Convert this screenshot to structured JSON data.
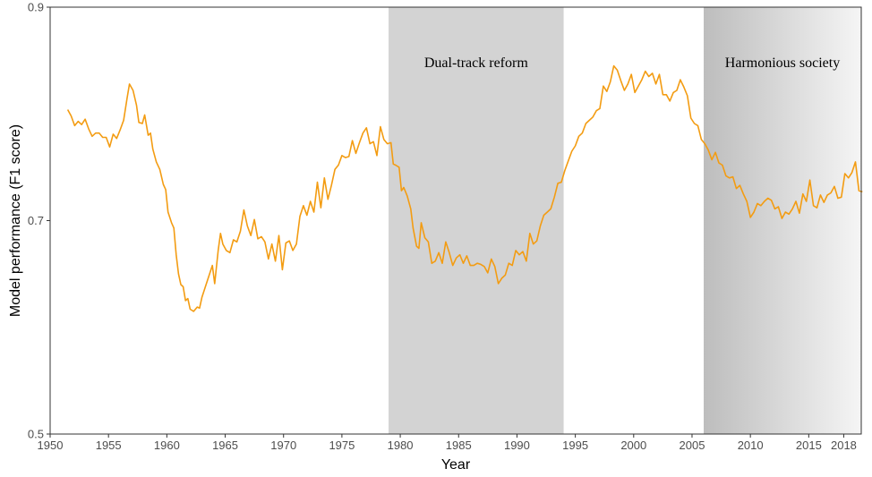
{
  "chart_data": {
    "type": "line",
    "title": "",
    "xlabel": "Year",
    "ylabel": "Model performance (F1 score)",
    "xlim": [
      1950,
      2019.5
    ],
    "ylim": [
      0.5,
      0.9
    ],
    "x_ticks": [
      1950,
      1955,
      1960,
      1965,
      1970,
      1975,
      1980,
      1985,
      1990,
      1995,
      2000,
      2005,
      2010,
      2015,
      2018
    ],
    "y_ticks": [
      0.5,
      0.7,
      0.9
    ],
    "y_tick_labels": [
      "0.5",
      "0.7",
      "0.9"
    ],
    "grid": false,
    "line_color": "#f39c12",
    "bands": [
      {
        "label": "Dual-track reform",
        "start": 1979,
        "end": 1994,
        "color": "#d3d3d3",
        "gradient": false
      },
      {
        "label": "Harmonious society",
        "start": 2006,
        "end": 2019.5,
        "color": "#bdbdbd",
        "end_color": "#f5f5f5",
        "gradient": true
      }
    ],
    "series": [
      {
        "values": [
          [
            1951.5,
            0.804
          ],
          [
            1951.8,
            0.798
          ],
          [
            1952.1,
            0.789
          ],
          [
            1952.4,
            0.793
          ],
          [
            1952.7,
            0.79
          ],
          [
            1953.0,
            0.795
          ],
          [
            1953.3,
            0.786
          ],
          [
            1953.6,
            0.779
          ],
          [
            1953.9,
            0.782
          ],
          [
            1954.2,
            0.782
          ],
          [
            1954.5,
            0.778
          ],
          [
            1954.8,
            0.778
          ],
          [
            1955.1,
            0.769
          ],
          [
            1955.4,
            0.781
          ],
          [
            1955.7,
            0.777
          ],
          [
            1956.0,
            0.785
          ],
          [
            1956.3,
            0.794
          ],
          [
            1956.6,
            0.815
          ],
          [
            1956.8,
            0.828
          ],
          [
            1957.1,
            0.822
          ],
          [
            1957.4,
            0.808
          ],
          [
            1957.6,
            0.792
          ],
          [
            1957.9,
            0.791
          ],
          [
            1958.1,
            0.799
          ],
          [
            1958.4,
            0.78
          ],
          [
            1958.6,
            0.782
          ],
          [
            1958.8,
            0.767
          ],
          [
            1959.1,
            0.755
          ],
          [
            1959.4,
            0.748
          ],
          [
            1959.7,
            0.734
          ],
          [
            1959.9,
            0.729
          ],
          [
            1960.1,
            0.708
          ],
          [
            1960.4,
            0.698
          ],
          [
            1960.6,
            0.693
          ],
          [
            1960.8,
            0.668
          ],
          [
            1961.0,
            0.65
          ],
          [
            1961.2,
            0.64
          ],
          [
            1961.4,
            0.638
          ],
          [
            1961.6,
            0.625
          ],
          [
            1961.8,
            0.627
          ],
          [
            1962.0,
            0.617
          ],
          [
            1962.3,
            0.615
          ],
          [
            1962.6,
            0.619
          ],
          [
            1962.8,
            0.618
          ],
          [
            1963.0,
            0.628
          ],
          [
            1963.3,
            0.638
          ],
          [
            1963.6,
            0.648
          ],
          [
            1963.9,
            0.658
          ],
          [
            1964.1,
            0.641
          ],
          [
            1964.4,
            0.672
          ],
          [
            1964.6,
            0.688
          ],
          [
            1964.8,
            0.678
          ],
          [
            1965.1,
            0.672
          ],
          [
            1965.4,
            0.67
          ],
          [
            1965.7,
            0.682
          ],
          [
            1966.0,
            0.68
          ],
          [
            1966.3,
            0.69
          ],
          [
            1966.6,
            0.71
          ],
          [
            1966.9,
            0.695
          ],
          [
            1967.2,
            0.686
          ],
          [
            1967.5,
            0.701
          ],
          [
            1967.8,
            0.683
          ],
          [
            1968.1,
            0.685
          ],
          [
            1968.4,
            0.68
          ],
          [
            1968.7,
            0.664
          ],
          [
            1969.0,
            0.678
          ],
          [
            1969.3,
            0.662
          ],
          [
            1969.6,
            0.686
          ],
          [
            1969.9,
            0.654
          ],
          [
            1970.2,
            0.679
          ],
          [
            1970.5,
            0.681
          ],
          [
            1970.8,
            0.672
          ],
          [
            1971.1,
            0.678
          ],
          [
            1971.4,
            0.704
          ],
          [
            1971.7,
            0.714
          ],
          [
            1972.0,
            0.705
          ],
          [
            1972.3,
            0.718
          ],
          [
            1972.6,
            0.708
          ],
          [
            1972.9,
            0.736
          ],
          [
            1973.2,
            0.712
          ],
          [
            1973.5,
            0.74
          ],
          [
            1973.8,
            0.72
          ],
          [
            1974.1,
            0.733
          ],
          [
            1974.4,
            0.748
          ],
          [
            1974.7,
            0.752
          ],
          [
            1975.0,
            0.761
          ],
          [
            1975.3,
            0.759
          ],
          [
            1975.6,
            0.76
          ],
          [
            1975.9,
            0.775
          ],
          [
            1976.2,
            0.763
          ],
          [
            1976.5,
            0.773
          ],
          [
            1976.8,
            0.782
          ],
          [
            1977.1,
            0.787
          ],
          [
            1977.4,
            0.772
          ],
          [
            1977.7,
            0.774
          ],
          [
            1978.0,
            0.761
          ],
          [
            1978.3,
            0.788
          ],
          [
            1978.6,
            0.776
          ],
          [
            1978.9,
            0.772
          ],
          [
            1979.2,
            0.773
          ],
          [
            1979.4,
            0.753
          ],
          [
            1979.6,
            0.752
          ],
          [
            1979.9,
            0.75
          ],
          [
            1980.1,
            0.728
          ],
          [
            1980.3,
            0.731
          ],
          [
            1980.6,
            0.723
          ],
          [
            1980.9,
            0.711
          ],
          [
            1981.1,
            0.693
          ],
          [
            1981.4,
            0.676
          ],
          [
            1981.6,
            0.674
          ],
          [
            1981.8,
            0.698
          ],
          [
            1982.1,
            0.684
          ],
          [
            1982.4,
            0.68
          ],
          [
            1982.7,
            0.66
          ],
          [
            1983.0,
            0.662
          ],
          [
            1983.3,
            0.67
          ],
          [
            1983.6,
            0.66
          ],
          [
            1983.9,
            0.68
          ],
          [
            1984.2,
            0.67
          ],
          [
            1984.5,
            0.658
          ],
          [
            1984.8,
            0.665
          ],
          [
            1985.1,
            0.668
          ],
          [
            1985.4,
            0.66
          ],
          [
            1985.7,
            0.667
          ],
          [
            1986.0,
            0.658
          ],
          [
            1986.3,
            0.658
          ],
          [
            1986.6,
            0.66
          ],
          [
            1986.9,
            0.659
          ],
          [
            1987.2,
            0.657
          ],
          [
            1987.5,
            0.651
          ],
          [
            1987.8,
            0.664
          ],
          [
            1988.1,
            0.657
          ],
          [
            1988.4,
            0.641
          ],
          [
            1988.7,
            0.646
          ],
          [
            1989.0,
            0.649
          ],
          [
            1989.3,
            0.66
          ],
          [
            1989.6,
            0.658
          ],
          [
            1989.9,
            0.672
          ],
          [
            1990.2,
            0.668
          ],
          [
            1990.5,
            0.671
          ],
          [
            1990.8,
            0.662
          ],
          [
            1991.1,
            0.688
          ],
          [
            1991.4,
            0.678
          ],
          [
            1991.7,
            0.681
          ],
          [
            1992.0,
            0.695
          ],
          [
            1992.3,
            0.705
          ],
          [
            1992.6,
            0.708
          ],
          [
            1992.9,
            0.711
          ],
          [
            1993.2,
            0.722
          ],
          [
            1993.5,
            0.735
          ],
          [
            1993.8,
            0.736
          ],
          [
            1994.1,
            0.747
          ],
          [
            1994.4,
            0.756
          ],
          [
            1994.7,
            0.765
          ],
          [
            1995.0,
            0.77
          ],
          [
            1995.3,
            0.779
          ],
          [
            1995.6,
            0.782
          ],
          [
            1995.9,
            0.791
          ],
          [
            1996.2,
            0.794
          ],
          [
            1996.5,
            0.797
          ],
          [
            1996.8,
            0.803
          ],
          [
            1997.1,
            0.805
          ],
          [
            1997.4,
            0.826
          ],
          [
            1997.7,
            0.821
          ],
          [
            1998.0,
            0.83
          ],
          [
            1998.3,
            0.845
          ],
          [
            1998.6,
            0.841
          ],
          [
            1998.9,
            0.831
          ],
          [
            1999.2,
            0.822
          ],
          [
            1999.5,
            0.828
          ],
          [
            1999.8,
            0.837
          ],
          [
            2000.1,
            0.82
          ],
          [
            2000.4,
            0.826
          ],
          [
            2000.7,
            0.832
          ],
          [
            2001.0,
            0.84
          ],
          [
            2001.3,
            0.835
          ],
          [
            2001.6,
            0.838
          ],
          [
            2001.9,
            0.828
          ],
          [
            2002.2,
            0.837
          ],
          [
            2002.5,
            0.818
          ],
          [
            2002.8,
            0.818
          ],
          [
            2003.1,
            0.812
          ],
          [
            2003.4,
            0.82
          ],
          [
            2003.7,
            0.822
          ],
          [
            2004.0,
            0.832
          ],
          [
            2004.3,
            0.825
          ],
          [
            2004.6,
            0.817
          ],
          [
            2004.9,
            0.796
          ],
          [
            2005.2,
            0.791
          ],
          [
            2005.5,
            0.789
          ],
          [
            2005.8,
            0.776
          ],
          [
            2006.1,
            0.772
          ],
          [
            2006.4,
            0.766
          ],
          [
            2006.7,
            0.757
          ],
          [
            2007.0,
            0.764
          ],
          [
            2007.3,
            0.754
          ],
          [
            2007.6,
            0.752
          ],
          [
            2007.9,
            0.742
          ],
          [
            2008.2,
            0.74
          ],
          [
            2008.5,
            0.741
          ],
          [
            2008.8,
            0.73
          ],
          [
            2009.1,
            0.733
          ],
          [
            2009.4,
            0.725
          ],
          [
            2009.7,
            0.718
          ],
          [
            2010.0,
            0.703
          ],
          [
            2010.3,
            0.708
          ],
          [
            2010.6,
            0.716
          ],
          [
            2010.9,
            0.714
          ],
          [
            2011.2,
            0.718
          ],
          [
            2011.5,
            0.721
          ],
          [
            2011.8,
            0.719
          ],
          [
            2012.1,
            0.711
          ],
          [
            2012.4,
            0.713
          ],
          [
            2012.7,
            0.702
          ],
          [
            2013.0,
            0.708
          ],
          [
            2013.3,
            0.706
          ],
          [
            2013.6,
            0.711
          ],
          [
            2013.9,
            0.718
          ],
          [
            2014.2,
            0.707
          ],
          [
            2014.5,
            0.725
          ],
          [
            2014.8,
            0.718
          ],
          [
            2015.1,
            0.738
          ],
          [
            2015.4,
            0.714
          ],
          [
            2015.7,
            0.712
          ],
          [
            2016.0,
            0.724
          ],
          [
            2016.3,
            0.717
          ],
          [
            2016.6,
            0.724
          ],
          [
            2016.9,
            0.726
          ],
          [
            2017.2,
            0.732
          ],
          [
            2017.5,
            0.721
          ],
          [
            2017.8,
            0.722
          ],
          [
            2018.1,
            0.744
          ],
          [
            2018.4,
            0.74
          ],
          [
            2018.7,
            0.745
          ],
          [
            2019.0,
            0.755
          ],
          [
            2019.3,
            0.728
          ],
          [
            2019.6,
            0.727
          ]
        ]
      }
    ]
  }
}
